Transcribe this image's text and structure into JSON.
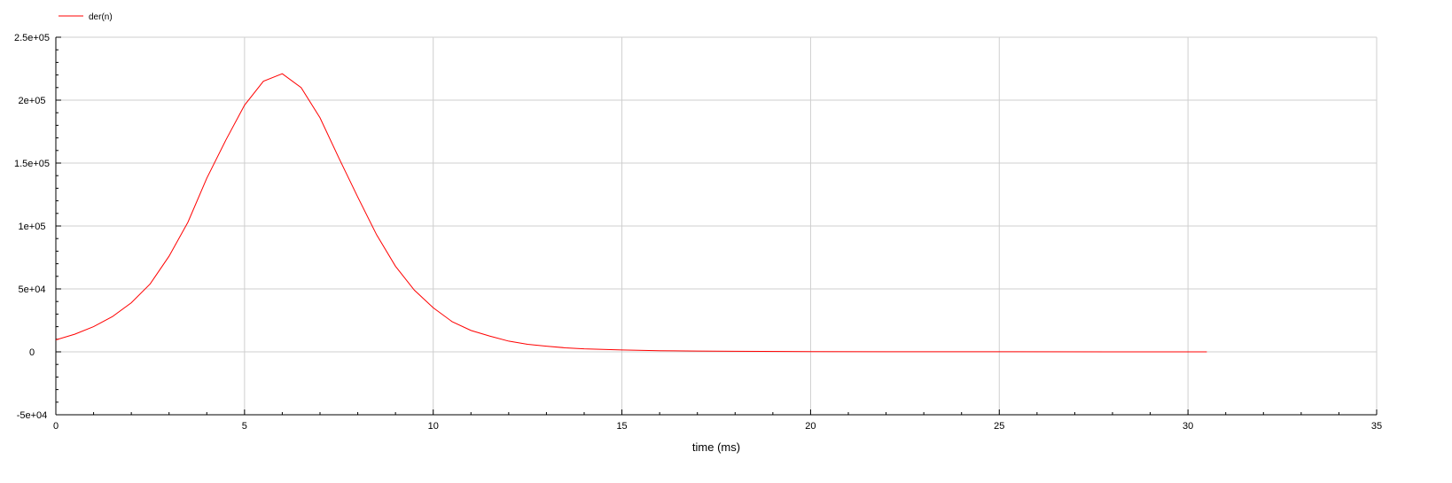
{
  "chart_data": {
    "type": "line",
    "title": "",
    "xlabel": "time (ms)",
    "ylabel": "",
    "xlim": [
      0,
      35
    ],
    "ylim": [
      -50000,
      250000
    ],
    "grid": true,
    "legend_position": "top-left",
    "x_ticks": [
      {
        "value": 0,
        "label": "0"
      },
      {
        "value": 5,
        "label": "5"
      },
      {
        "value": 10,
        "label": "10"
      },
      {
        "value": 15,
        "label": "15"
      },
      {
        "value": 20,
        "label": "20"
      },
      {
        "value": 25,
        "label": "25"
      },
      {
        "value": 30,
        "label": "30"
      },
      {
        "value": 35,
        "label": "35"
      }
    ],
    "y_ticks": [
      {
        "value": -50000,
        "label": "-5e+04"
      },
      {
        "value": 0,
        "label": "0"
      },
      {
        "value": 50000,
        "label": "5e+04"
      },
      {
        "value": 100000,
        "label": "1e+05"
      },
      {
        "value": 150000,
        "label": "1.5e+05"
      },
      {
        "value": 200000,
        "label": "2e+05"
      },
      {
        "value": 250000,
        "label": "2.5e+05"
      }
    ],
    "series": [
      {
        "name": "der(n)",
        "color": "#ff0000",
        "x": [
          0,
          0.5,
          1,
          1.5,
          2,
          2.5,
          3,
          3.5,
          4,
          4.5,
          5,
          5.5,
          6,
          6.5,
          7,
          7.5,
          8,
          8.5,
          9,
          9.5,
          10,
          10.5,
          11,
          11.5,
          12,
          12.5,
          13,
          13.5,
          14,
          15,
          16,
          17,
          18,
          20,
          22,
          25,
          28,
          30.5
        ],
        "y": [
          9500,
          14000,
          20000,
          28000,
          39000,
          54000,
          76000,
          103000,
          138000,
          168000,
          196000,
          215000,
          221000,
          210000,
          186000,
          154000,
          123000,
          93000,
          68000,
          49000,
          35000,
          24000,
          17000,
          12500,
          8500,
          6000,
          4500,
          3200,
          2400,
          1500,
          900,
          600,
          400,
          200,
          100,
          50,
          20,
          0
        ]
      }
    ]
  }
}
